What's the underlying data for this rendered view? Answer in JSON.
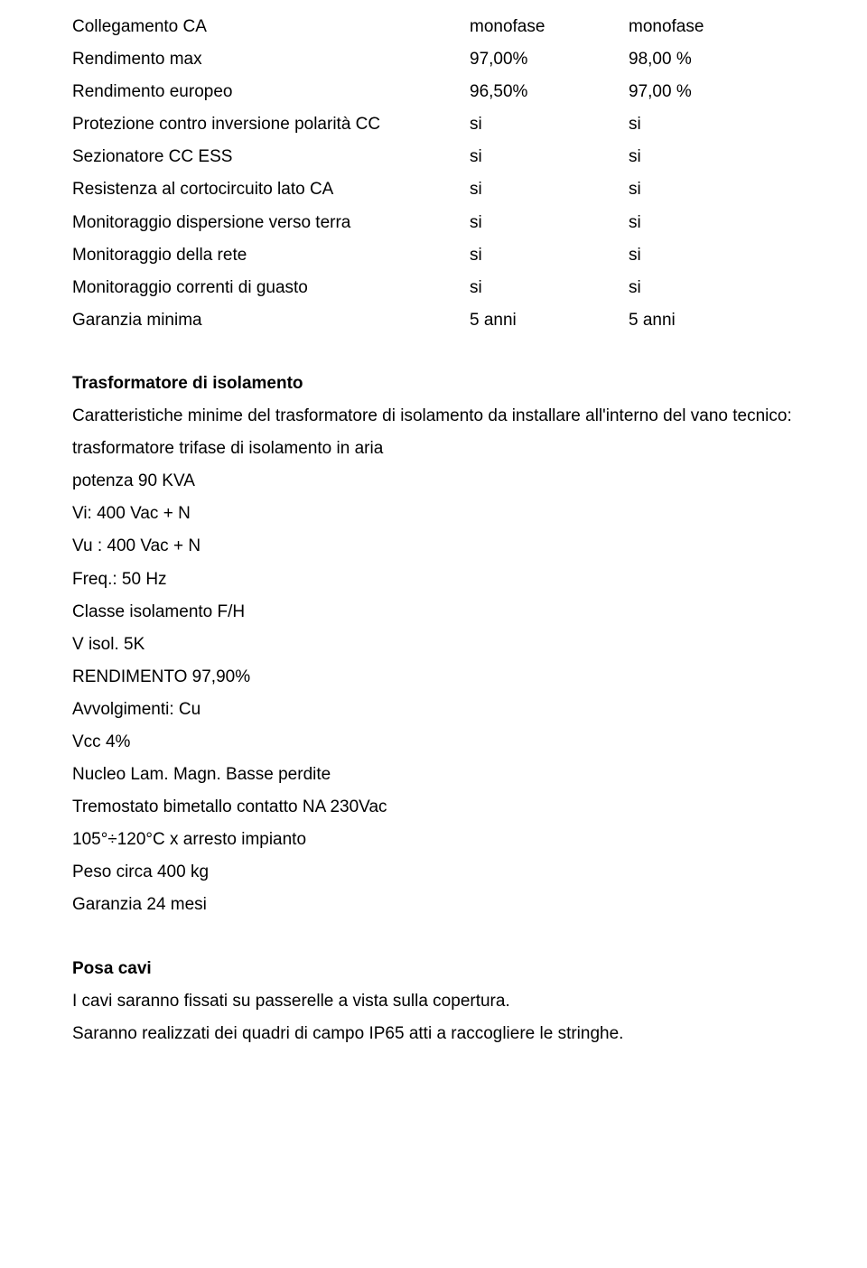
{
  "specs_table": {
    "rows": [
      {
        "label": "Collegamento CA",
        "c1": "monofase",
        "c2": "monofase"
      },
      {
        "label": "Rendimento max",
        "c1": "97,00%",
        "c2": "98,00 %"
      },
      {
        "label": "Rendimento europeo",
        "c1": "96,50%",
        "c2": "97,00 %"
      },
      {
        "label": "Protezione contro inversione polarità CC",
        "c1": "si",
        "c2": "si"
      },
      {
        "label": "Sezionatore CC ESS",
        "c1": "si",
        "c2": "si"
      },
      {
        "label": "Resistenza al cortocircuito lato CA",
        "c1": "si",
        "c2": "si"
      },
      {
        "label": "Monitoraggio dispersione verso terra",
        "c1": "si",
        "c2": "si"
      },
      {
        "label": "Monitoraggio della rete",
        "c1": "si",
        "c2": "si"
      },
      {
        "label": "Monitoraggio correnti di guasto",
        "c1": "si",
        "c2": "si"
      },
      {
        "label": "Garanzia minima",
        "c1": "5 anni",
        "c2": "5 anni"
      }
    ]
  },
  "transformer": {
    "heading": "Trasformatore di isolamento",
    "lines": [
      "Caratteristiche minime del trasformatore di isolamento da installare all'interno del vano tecnico:",
      "trasformatore trifase di isolamento in aria",
      "potenza 90 KVA",
      "Vi: 400 Vac + N",
      "Vu : 400 Vac + N",
      "Freq.: 50 Hz",
      "Classe isolamento F/H",
      "V isol. 5K",
      "RENDIMENTO 97,90%",
      "Avvolgimenti: Cu",
      "Vcc 4%",
      "Nucleo Lam. Magn. Basse perdite",
      "Tremostato bimetallo contatto NA 230Vac",
      "105°÷120°C x arresto impianto",
      "Peso circa 400 kg",
      "Garanzia 24 mesi"
    ]
  },
  "cables": {
    "heading": "Posa cavi",
    "lines": [
      "I cavi saranno fissati su passerelle a vista sulla copertura.",
      "Saranno realizzati dei quadri di campo IP65 atti a raccogliere le stringhe."
    ]
  }
}
